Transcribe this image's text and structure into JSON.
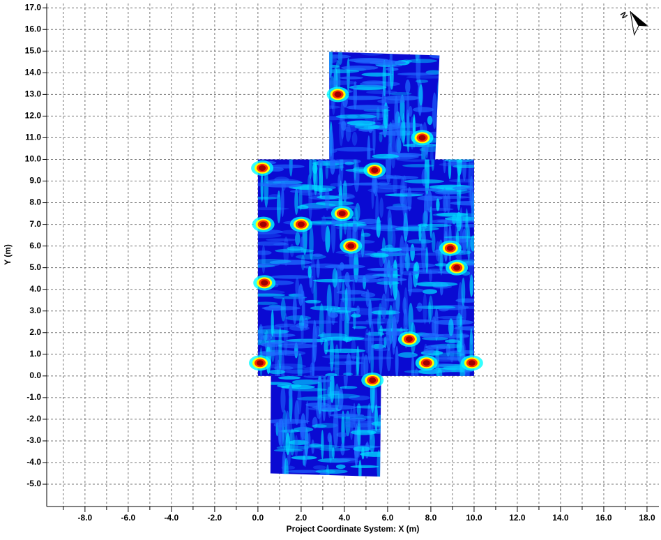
{
  "chart_data": {
    "type": "survey-map",
    "xlabel": "Project Coordinate System: X (m)",
    "ylabel": "Y (m)",
    "north_label": "N",
    "xlim": [
      -9.77,
      18.55
    ],
    "ylim": [
      -6.03,
      17.2
    ],
    "xticks": [
      {
        "value": -8,
        "label": "-8.0"
      },
      {
        "value": -6,
        "label": "-6.0"
      },
      {
        "value": -4,
        "label": "-4.0"
      },
      {
        "value": -2,
        "label": "-2.0"
      },
      {
        "value": 0,
        "label": "0.0"
      },
      {
        "value": 2,
        "label": "2.0"
      },
      {
        "value": 4,
        "label": "4.0"
      },
      {
        "value": 6,
        "label": "6.0"
      },
      {
        "value": 8,
        "label": "8.0"
      },
      {
        "value": 10,
        "label": "10.0"
      },
      {
        "value": 12,
        "label": "12.0"
      },
      {
        "value": 14,
        "label": "14.0"
      },
      {
        "value": 16,
        "label": "16.0"
      },
      {
        "value": 18,
        "label": "18.0"
      }
    ],
    "xminor": [
      -9,
      -7,
      -5,
      -3,
      -1,
      1,
      3,
      5,
      7,
      9,
      11,
      13,
      15,
      17
    ],
    "yticks": [
      {
        "value": -5,
        "label": "-5.0"
      },
      {
        "value": -4,
        "label": "-4.0"
      },
      {
        "value": -3,
        "label": "-3.0"
      },
      {
        "value": -2,
        "label": "-2.0"
      },
      {
        "value": -1,
        "label": "-1.0"
      },
      {
        "value": 0,
        "label": "0.0"
      },
      {
        "value": 1,
        "label": "1.0"
      },
      {
        "value": 2,
        "label": "2.0"
      },
      {
        "value": 3,
        "label": "3.0"
      },
      {
        "value": 4,
        "label": "4.0"
      },
      {
        "value": 5,
        "label": "5.0"
      },
      {
        "value": 6,
        "label": "6.0"
      },
      {
        "value": 7,
        "label": "7.0"
      },
      {
        "value": 8,
        "label": "8.0"
      },
      {
        "value": 9,
        "label": "9.0"
      },
      {
        "value": 10,
        "label": "10.0"
      },
      {
        "value": 11,
        "label": "11.0"
      },
      {
        "value": 12,
        "label": "12.0"
      },
      {
        "value": 13,
        "label": "13.0"
      },
      {
        "value": 14,
        "label": "14.0"
      },
      {
        "value": 15,
        "label": "15.0"
      },
      {
        "value": 16,
        "label": "16.0"
      },
      {
        "value": 17,
        "label": "17.0"
      }
    ],
    "grid": true,
    "panel_color": "#0a0ad2",
    "panels": [
      {
        "x": [
          3.3,
          8.4,
          8.2,
          3.3
        ],
        "y": [
          14.97,
          14.8,
          10.0,
          10.0
        ]
      },
      {
        "x": [
          0.0,
          10.0,
          10.0,
          0.0
        ],
        "y": [
          10.0,
          10.0,
          0.0,
          0.0
        ]
      },
      {
        "x": [
          0.6,
          5.7,
          5.65,
          0.58
        ],
        "y": [
          0.0,
          0.0,
          -4.65,
          -4.5
        ]
      }
    ],
    "anomalies": {
      "x": [
        0.25,
        4.3,
        0.3,
        3.7,
        9.2,
        8.9,
        7.8,
        7.0,
        5.3,
        9.9,
        0.1,
        0.2,
        2.0,
        3.9,
        7.6,
        5.4
      ],
      "y": [
        7.0,
        6.0,
        4.3,
        13.0,
        5.0,
        5.9,
        0.6,
        1.7,
        -0.2,
        0.6,
        0.6,
        9.6,
        7.0,
        7.5,
        11.0,
        9.5
      ]
    }
  }
}
